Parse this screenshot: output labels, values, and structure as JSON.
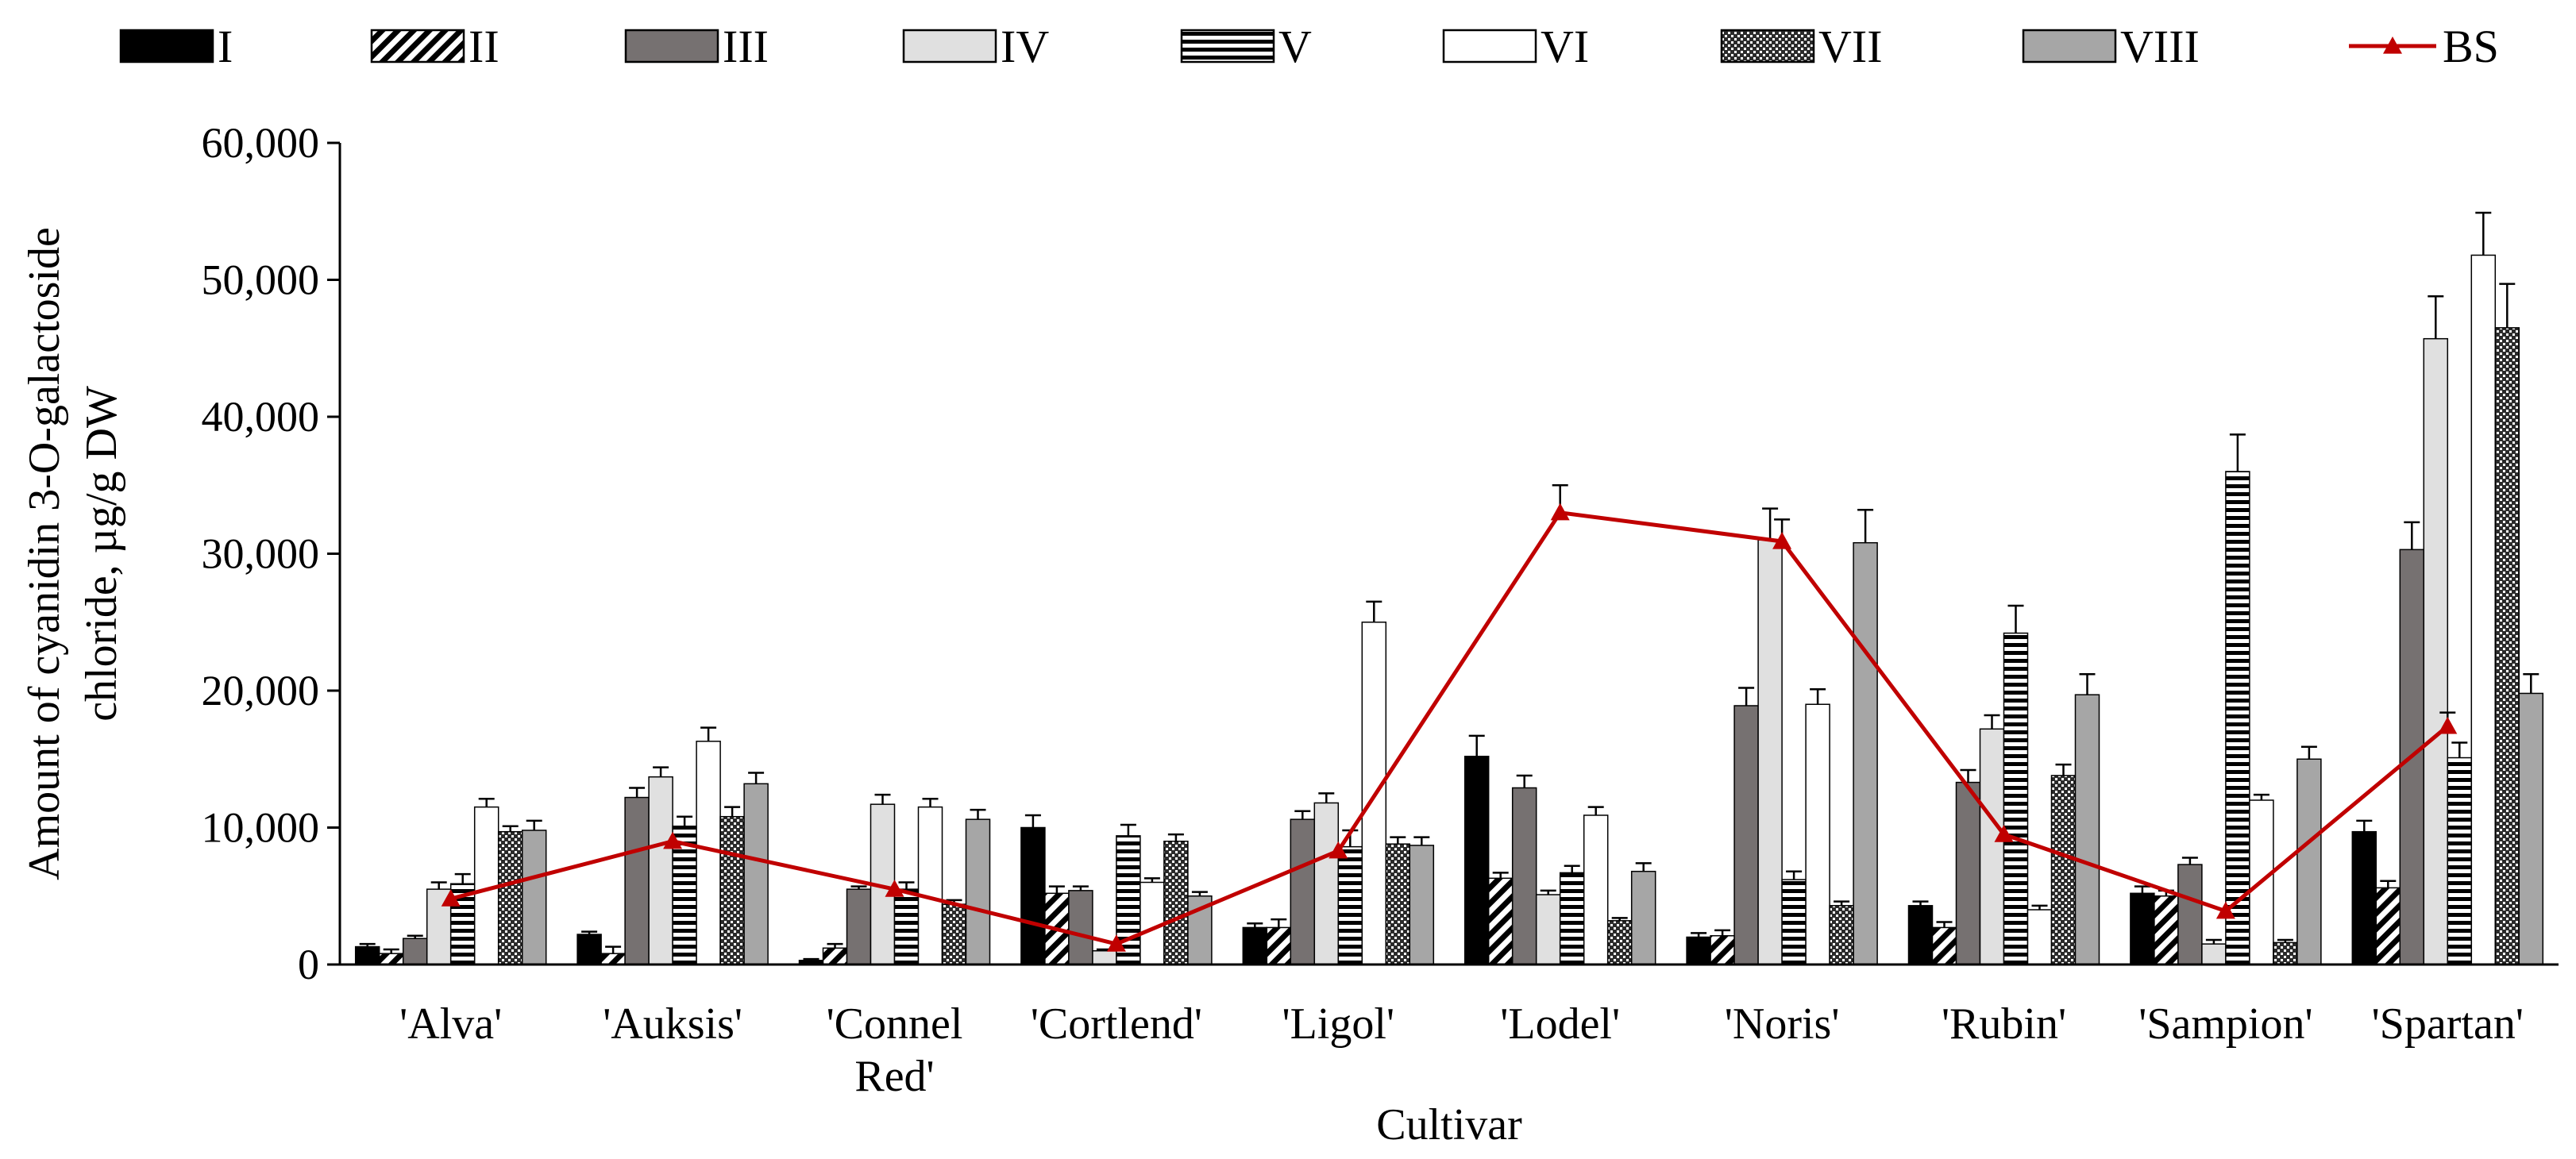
{
  "chart_data": {
    "type": "bar",
    "xlabel": "Cultivar",
    "ylabel_lines": [
      "Amount of cyanidin 3-O-galactoside",
      "chloride, µg/g DW"
    ],
    "ylim": [
      0,
      60000
    ],
    "yticks": [
      0,
      10000,
      20000,
      30000,
      40000,
      50000,
      60000
    ],
    "ytick_labels": [
      "0",
      "10,000",
      "20,000",
      "30,000",
      "40,000",
      "50,000",
      "60,000"
    ],
    "grid": false,
    "legend_position": "top",
    "categories": [
      [
        "'Alva'"
      ],
      [
        "'Auksis'"
      ],
      [
        "'Connel",
        "Red'"
      ],
      [
        "'Cortlend'"
      ],
      [
        "'Ligol'"
      ],
      [
        "'Lodel'"
      ],
      [
        "'Noris'"
      ],
      [
        "'Rubin'"
      ],
      [
        "'Sampion'"
      ],
      [
        "'Spartan'"
      ]
    ],
    "series": [
      {
        "name": "I",
        "pattern": "solid-black",
        "values": [
          1300,
          2200,
          300,
          10000,
          2700,
          15200,
          2000,
          4300,
          5200,
          9700
        ],
        "errors": [
          200,
          200,
          100,
          900,
          300,
          1500,
          300,
          300,
          500,
          800
        ]
      },
      {
        "name": "II",
        "pattern": "diagonal",
        "values": [
          800,
          800,
          1200,
          5200,
          2700,
          6300,
          2100,
          2700,
          5000,
          5600
        ],
        "errors": [
          300,
          500,
          300,
          500,
          600,
          400,
          400,
          400,
          400,
          500
        ]
      },
      {
        "name": "III",
        "pattern": "dark-gray",
        "values": [
          1900,
          12200,
          5500,
          5400,
          10600,
          12900,
          18900,
          13300,
          7300,
          30300
        ],
        "errors": [
          200,
          700,
          200,
          300,
          600,
          900,
          1300,
          900,
          500,
          2000
        ]
      },
      {
        "name": "IV",
        "pattern": "light-gray",
        "values": [
          5500,
          13700,
          11700,
          1000,
          11800,
          5100,
          31000,
          17200,
          1500,
          45700
        ],
        "errors": [
          500,
          700,
          700,
          100,
          700,
          300,
          2300,
          1000,
          300,
          3100
        ]
      },
      {
        "name": "V",
        "pattern": "horizontal",
        "values": [
          5900,
          10100,
          5500,
          9400,
          8600,
          6700,
          6200,
          24200,
          36000,
          15100
        ],
        "errors": [
          700,
          700,
          500,
          800,
          1200,
          500,
          600,
          2000,
          2700,
          1100
        ]
      },
      {
        "name": "VI",
        "pattern": "white",
        "values": [
          11500,
          16300,
          11500,
          6000,
          25000,
          10900,
          19000,
          4000,
          12000,
          51800
        ],
        "errors": [
          600,
          1000,
          600,
          300,
          1500,
          600,
          1100,
          300,
          400,
          3100
        ]
      },
      {
        "name": "VII",
        "pattern": "crosshatch",
        "values": [
          9700,
          10800,
          4400,
          9000,
          8800,
          3200,
          4300,
          13800,
          1600,
          46500
        ],
        "errors": [
          400,
          700,
          300,
          500,
          500,
          200,
          300,
          800,
          200,
          3200
        ]
      },
      {
        "name": "VIII",
        "pattern": "medium-gray",
        "values": [
          9800,
          13200,
          10600,
          5000,
          8700,
          6800,
          30800,
          19700,
          15000,
          19800
        ],
        "errors": [
          700,
          800,
          700,
          300,
          600,
          600,
          2400,
          1500,
          900,
          1400
        ]
      }
    ],
    "line_series": {
      "name": "BS",
      "color": "#c00000",
      "marker": "triangle",
      "values": [
        4800,
        9000,
        5500,
        1500,
        8300,
        33000,
        30900,
        9500,
        3900,
        17400
      ],
      "errors": [
        0,
        0,
        0,
        0,
        0,
        2000,
        1600,
        0,
        0,
        1000
      ]
    }
  }
}
